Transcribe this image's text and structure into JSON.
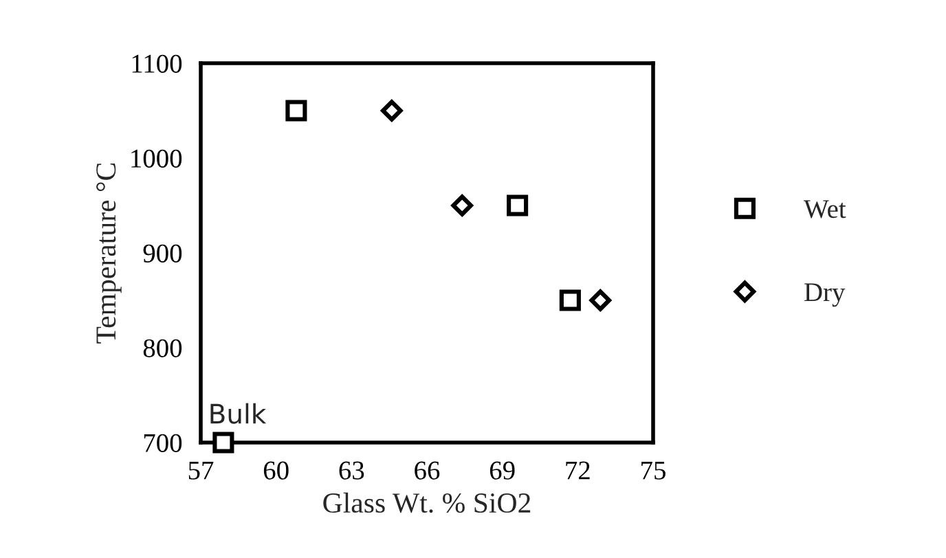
{
  "chart_data": {
    "type": "scatter",
    "xlabel": "Glass Wt. % SiO2",
    "ylabel": "Temperature °C",
    "xlim": [
      57,
      75
    ],
    "xticks": [
      57,
      60,
      63,
      66,
      69,
      72,
      75
    ],
    "ylim": [
      700,
      1100
    ],
    "yticks": [
      700,
      800,
      900,
      1000,
      1100
    ],
    "grid": false,
    "legend": "right",
    "series": [
      {
        "name": "Wet",
        "color": "#000000",
        "marker": "square",
        "x": [
          57.9,
          60.8,
          69.6,
          71.7
        ],
        "values": [
          700,
          1050,
          950,
          850
        ]
      },
      {
        "name": "Dry",
        "color": "#000000",
        "marker": "diamond",
        "x": [
          64.6,
          67.4,
          72.9
        ],
        "values": [
          1050,
          950,
          850
        ]
      }
    ],
    "annotations": [
      {
        "text": "Bulk",
        "x": 57.9,
        "y": 700
      }
    ]
  }
}
